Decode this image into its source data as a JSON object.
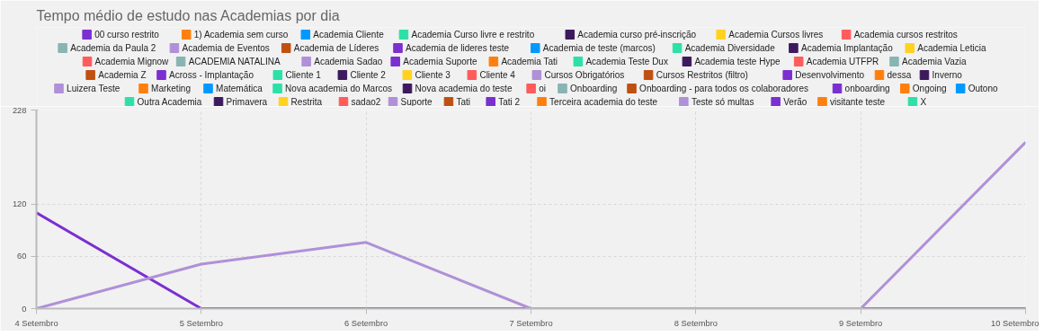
{
  "chart_data": {
    "type": "line",
    "title": "Tempo médio de estudo nas Academias por dia",
    "categories": [
      "4 Setembro",
      "5 Setembro",
      "6 Setembro",
      "7 Setembro",
      "8 Setembro",
      "9 Setembro",
      "10 Setembro"
    ],
    "ylim": [
      0,
      228
    ],
    "yticks": [
      0,
      60,
      120,
      228
    ],
    "grid": true,
    "legend": "top",
    "series": [
      {
        "name": "00 curso restrito",
        "color": "#7b2fd0",
        "values": [
          110,
          0,
          0,
          0,
          0,
          0,
          0
        ]
      },
      {
        "name": "1) Academia sem curso",
        "color": "#ff7f0e",
        "values": [
          null,
          null,
          null,
          null,
          null,
          null,
          null
        ]
      },
      {
        "name": "Academia Cliente",
        "color": "#0099ff",
        "values": [
          null,
          null,
          null,
          null,
          null,
          null,
          null
        ]
      },
      {
        "name": "Academia Curso livre e restrito",
        "color": "#2de0a8",
        "values": [
          null,
          null,
          null,
          null,
          null,
          null,
          null
        ]
      },
      {
        "name": "Academia curso pré-inscrição",
        "color": "#3d1a5e",
        "values": [
          null,
          null,
          null,
          null,
          null,
          null,
          null
        ]
      },
      {
        "name": "Academia Cursos livres",
        "color": "#ffd21f",
        "values": [
          null,
          null,
          null,
          null,
          null,
          null,
          null
        ]
      },
      {
        "name": "Academia cursos restritos",
        "color": "#ff5b5b",
        "values": [
          null,
          null,
          null,
          null,
          null,
          null,
          null
        ]
      },
      {
        "name": "Academia da Paula 2",
        "color": "#88b4b4",
        "values": [
          null,
          null,
          null,
          null,
          null,
          null,
          null
        ]
      },
      {
        "name": "Academia de Eventos",
        "color": "#b090d8",
        "values": [
          null,
          null,
          null,
          null,
          null,
          null,
          null
        ]
      },
      {
        "name": "Academia de Líderes",
        "color": "#c05010",
        "values": [
          null,
          null,
          null,
          null,
          null,
          null,
          null
        ]
      },
      {
        "name": "Academia de lideres teste",
        "color": "#7b2fd0",
        "values": [
          null,
          null,
          null,
          null,
          null,
          null,
          null
        ]
      },
      {
        "name": "Academia de teste (marcos)",
        "color": "#0099ff",
        "values": [
          null,
          null,
          null,
          null,
          null,
          null,
          null
        ]
      },
      {
        "name": "Academia Diversidade",
        "color": "#2de0a8",
        "values": [
          null,
          null,
          null,
          null,
          null,
          null,
          null
        ]
      },
      {
        "name": "Academia Implantação",
        "color": "#3d1a5e",
        "values": [
          null,
          null,
          null,
          null,
          null,
          null,
          null
        ]
      },
      {
        "name": "Academia Leticia",
        "color": "#ffd21f",
        "values": [
          null,
          null,
          null,
          null,
          null,
          null,
          null
        ]
      },
      {
        "name": "Academia Mignow",
        "color": "#ff5b5b",
        "values": [
          null,
          null,
          null,
          null,
          null,
          null,
          null
        ]
      },
      {
        "name": "ACADEMIA NATALINA",
        "color": "#88b4b4",
        "values": [
          null,
          null,
          null,
          null,
          null,
          null,
          null
        ]
      },
      {
        "name": "Academia Sadao",
        "color": "#b090d8",
        "values": [
          null,
          null,
          null,
          null,
          null,
          null,
          null
        ]
      },
      {
        "name": "Academia Suporte",
        "color": "#7b2fd0",
        "values": [
          null,
          null,
          null,
          null,
          null,
          null,
          null
        ]
      },
      {
        "name": "Academia Tati",
        "color": "#ff7f0e",
        "values": [
          null,
          null,
          null,
          null,
          null,
          null,
          null
        ]
      },
      {
        "name": "Academia Teste Dux",
        "color": "#2de0a8",
        "values": [
          null,
          null,
          null,
          null,
          null,
          null,
          null
        ]
      },
      {
        "name": "Academia teste Hype",
        "color": "#3d1a5e",
        "values": [
          null,
          null,
          null,
          null,
          null,
          null,
          null
        ]
      },
      {
        "name": "Academia UTFPR",
        "color": "#ff5b5b",
        "values": [
          null,
          null,
          null,
          null,
          null,
          null,
          null
        ]
      },
      {
        "name": "Academia Vazia",
        "color": "#88b4b4",
        "values": [
          null,
          null,
          null,
          null,
          null,
          null,
          null
        ]
      },
      {
        "name": "Academia Z",
        "color": "#c05010",
        "values": [
          null,
          null,
          null,
          null,
          null,
          null,
          null
        ]
      },
      {
        "name": "Across - Implantação",
        "color": "#7b2fd0",
        "values": [
          null,
          null,
          null,
          null,
          null,
          null,
          null
        ]
      },
      {
        "name": "Cliente 1",
        "color": "#2de0a8",
        "values": [
          null,
          null,
          null,
          null,
          null,
          null,
          null
        ]
      },
      {
        "name": "Cliente 2",
        "color": "#3d1a5e",
        "values": [
          null,
          null,
          null,
          null,
          null,
          null,
          null
        ]
      },
      {
        "name": "Cliente 3",
        "color": "#ffd21f",
        "values": [
          null,
          null,
          null,
          null,
          null,
          null,
          null
        ]
      },
      {
        "name": "Cliente 4",
        "color": "#ff5b5b",
        "values": [
          null,
          null,
          null,
          null,
          null,
          null,
          null
        ]
      },
      {
        "name": "Cursos Obrigatórios",
        "color": "#b090d8",
        "values": [
          null,
          null,
          null,
          null,
          null,
          null,
          null
        ]
      },
      {
        "name": "Cursos Restritos (filtro)",
        "color": "#c05010",
        "values": [
          null,
          null,
          null,
          null,
          null,
          null,
          null
        ]
      },
      {
        "name": "Desenvolvimento",
        "color": "#7b2fd0",
        "values": [
          null,
          null,
          null,
          null,
          null,
          null,
          null
        ]
      },
      {
        "name": "dessa",
        "color": "#ff7f0e",
        "values": [
          null,
          null,
          null,
          null,
          null,
          null,
          null
        ]
      },
      {
        "name": "Inverno",
        "color": "#3d1a5e",
        "values": [
          null,
          null,
          null,
          null,
          null,
          null,
          null
        ]
      },
      {
        "name": "Luizera Teste",
        "color": "#b090d8",
        "values": [
          null,
          null,
          null,
          null,
          null,
          null,
          null
        ]
      },
      {
        "name": "Marketing",
        "color": "#ff7f0e",
        "values": [
          null,
          null,
          null,
          null,
          null,
          null,
          null
        ]
      },
      {
        "name": "Matemática",
        "color": "#0099ff",
        "values": [
          null,
          null,
          null,
          null,
          null,
          null,
          null
        ]
      },
      {
        "name": "Nova academia do Marcos",
        "color": "#2de0a8",
        "values": [
          null,
          null,
          null,
          null,
          null,
          null,
          null
        ]
      },
      {
        "name": "Nova academia do teste",
        "color": "#3d1a5e",
        "values": [
          null,
          null,
          null,
          null,
          null,
          null,
          null
        ]
      },
      {
        "name": "oi",
        "color": "#ff5b5b",
        "values": [
          null,
          null,
          null,
          null,
          null,
          null,
          null
        ]
      },
      {
        "name": "Onboarding",
        "color": "#88b4b4",
        "values": [
          null,
          null,
          null,
          null,
          null,
          null,
          null
        ]
      },
      {
        "name": "Onboarding - para todos os colaboradores",
        "color": "#c05010",
        "values": [
          null,
          null,
          null,
          null,
          null,
          null,
          null
        ]
      },
      {
        "name": "onboarding",
        "color": "#7b2fd0",
        "values": [
          null,
          null,
          null,
          null,
          null,
          null,
          null
        ]
      },
      {
        "name": "Ongoing",
        "color": "#ff7f0e",
        "values": [
          null,
          null,
          null,
          null,
          null,
          null,
          null
        ]
      },
      {
        "name": "Outono",
        "color": "#0099ff",
        "values": [
          null,
          null,
          null,
          null,
          null,
          null,
          null
        ]
      },
      {
        "name": "Outra Academia",
        "color": "#2de0a8",
        "values": [
          null,
          null,
          null,
          null,
          null,
          null,
          null
        ]
      },
      {
        "name": "Primavera",
        "color": "#3d1a5e",
        "values": [
          null,
          null,
          null,
          null,
          null,
          null,
          null
        ]
      },
      {
        "name": "Restrita",
        "color": "#ffd21f",
        "values": [
          null,
          null,
          null,
          null,
          null,
          null,
          null
        ]
      },
      {
        "name": "sadao2",
        "color": "#ff5b5b",
        "values": [
          null,
          null,
          null,
          null,
          null,
          null,
          null
        ]
      },
      {
        "name": "Suporte",
        "color": "#b090d8",
        "values": [
          null,
          null,
          null,
          null,
          null,
          null,
          null
        ]
      },
      {
        "name": "Tati",
        "color": "#c05010",
        "values": [
          null,
          null,
          null,
          null,
          null,
          null,
          null
        ]
      },
      {
        "name": "Tati 2",
        "color": "#7b2fd0",
        "values": [
          null,
          null,
          null,
          null,
          null,
          null,
          null
        ]
      },
      {
        "name": "Terceira academia do teste",
        "color": "#ff7f0e",
        "values": [
          null,
          null,
          null,
          null,
          null,
          null,
          null
        ]
      },
      {
        "name": "Teste só multas",
        "color": "#b090d8",
        "values": [
          0,
          51,
          76,
          0,
          0,
          0,
          191
        ]
      },
      {
        "name": "Verão",
        "color": "#7b2fd0",
        "values": [
          null,
          null,
          null,
          null,
          null,
          null,
          null
        ]
      },
      {
        "name": "visitante teste",
        "color": "#ff7f0e",
        "values": [
          null,
          null,
          null,
          null,
          null,
          null,
          null
        ]
      },
      {
        "name": "X",
        "color": "#2de0a8",
        "values": [
          null,
          null,
          null,
          null,
          null,
          null,
          null
        ]
      }
    ]
  }
}
